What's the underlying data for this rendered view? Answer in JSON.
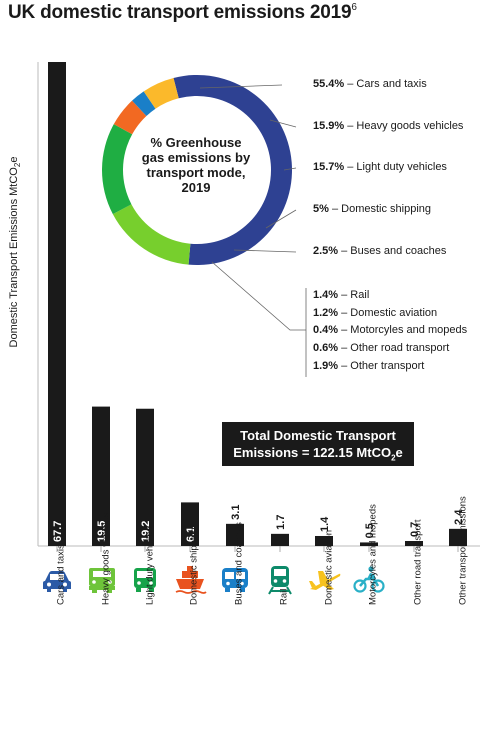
{
  "title": "UK domestic transport emissions 2019",
  "title_note": "6",
  "ylabel_main": "Domestic Transport Emissions MtCO",
  "ylabel_sub": "2",
  "ylabel_end": "e",
  "total": {
    "line1": "Total Domestic Transport",
    "line2_pre": "Emissions  =  122.15 MtCO",
    "line2_sub": "2",
    "line2_post": "e"
  },
  "donut": {
    "center_text": "% Greenhouse gas emissions by transport mode, 2019",
    "annotations": [
      {
        "pct": "55.4%",
        "label": " – Cars and taxis"
      },
      {
        "pct": "15.9%",
        "label": " – Heavy goods vehicles"
      },
      {
        "pct": "15.7%",
        "label": " – Light duty vehicles"
      },
      {
        "pct": "5%",
        "label": " – Domestic shipping"
      },
      {
        "pct": "2.5%",
        "label": " – Buses and coaches"
      }
    ],
    "small_annotations": [
      {
        "pct": "1.4%",
        "label": " – Rail"
      },
      {
        "pct": "1.2%",
        "label": " – Domestic aviation"
      },
      {
        "pct": "0.4%",
        "label": " – Motorcyles and mopeds"
      },
      {
        "pct": "0.6%",
        "label": " – Other road transport"
      },
      {
        "pct": "1.9%",
        "label": " – Other transport"
      }
    ]
  },
  "colors": {
    "bar": "#1a1a1a",
    "icon": "#2b5aa6",
    "cars": "#2e4192",
    "hgv": "#77cf2d",
    "ldv": "#1fae43",
    "shipping": "#f26922",
    "buses": "#1a7fc8",
    "small": "#fbb92b",
    "rail_icon": "#0d8a6a",
    "aviation_icon": "#f7c21e",
    "moto_icon": "#2ab0c7",
    "hgv_icon": "#6ec43a",
    "ldv_icon": "#16a34a",
    "ship_icon": "#e9531f",
    "bus_icon": "#1a7fc8"
  },
  "chart_data": [
    {
      "type": "bar",
      "categories": [
        "Cars and taxis",
        "Heavy goods vehicles",
        "Light duty vehicles",
        "Domestic shipping",
        "Buses and coaches",
        "Rail",
        "Domestic aviation",
        "Motorcyles and mopeds",
        "Other road transport",
        "Other transport emissions"
      ],
      "values": [
        67.7,
        19.5,
        19.2,
        6.1,
        3.1,
        1.7,
        1.4,
        0.5,
        0.7,
        2.4
      ],
      "value_labels": [
        "67.7",
        "19.5",
        "19.2",
        "6.1",
        "3.1",
        "1.7",
        "1.4",
        "0.5",
        "0.7",
        "2.4"
      ],
      "ylabel": "Domestic Transport Emissions MtCO2e",
      "ylim": [
        0,
        67.7
      ],
      "grid": false
    },
    {
      "type": "pie",
      "title": "% Greenhouse gas emissions by transport mode, 2019",
      "labels": [
        "Cars and taxis",
        "Heavy goods vehicles",
        "Light duty vehicles",
        "Domestic shipping",
        "Buses and coaches",
        "Rail",
        "Domestic aviation",
        "Motorcyles and mopeds",
        "Other road transport",
        "Other transport"
      ],
      "values": [
        55.4,
        15.9,
        15.7,
        5,
        2.5,
        1.4,
        1.2,
        0.4,
        0.6,
        1.9
      ]
    }
  ]
}
